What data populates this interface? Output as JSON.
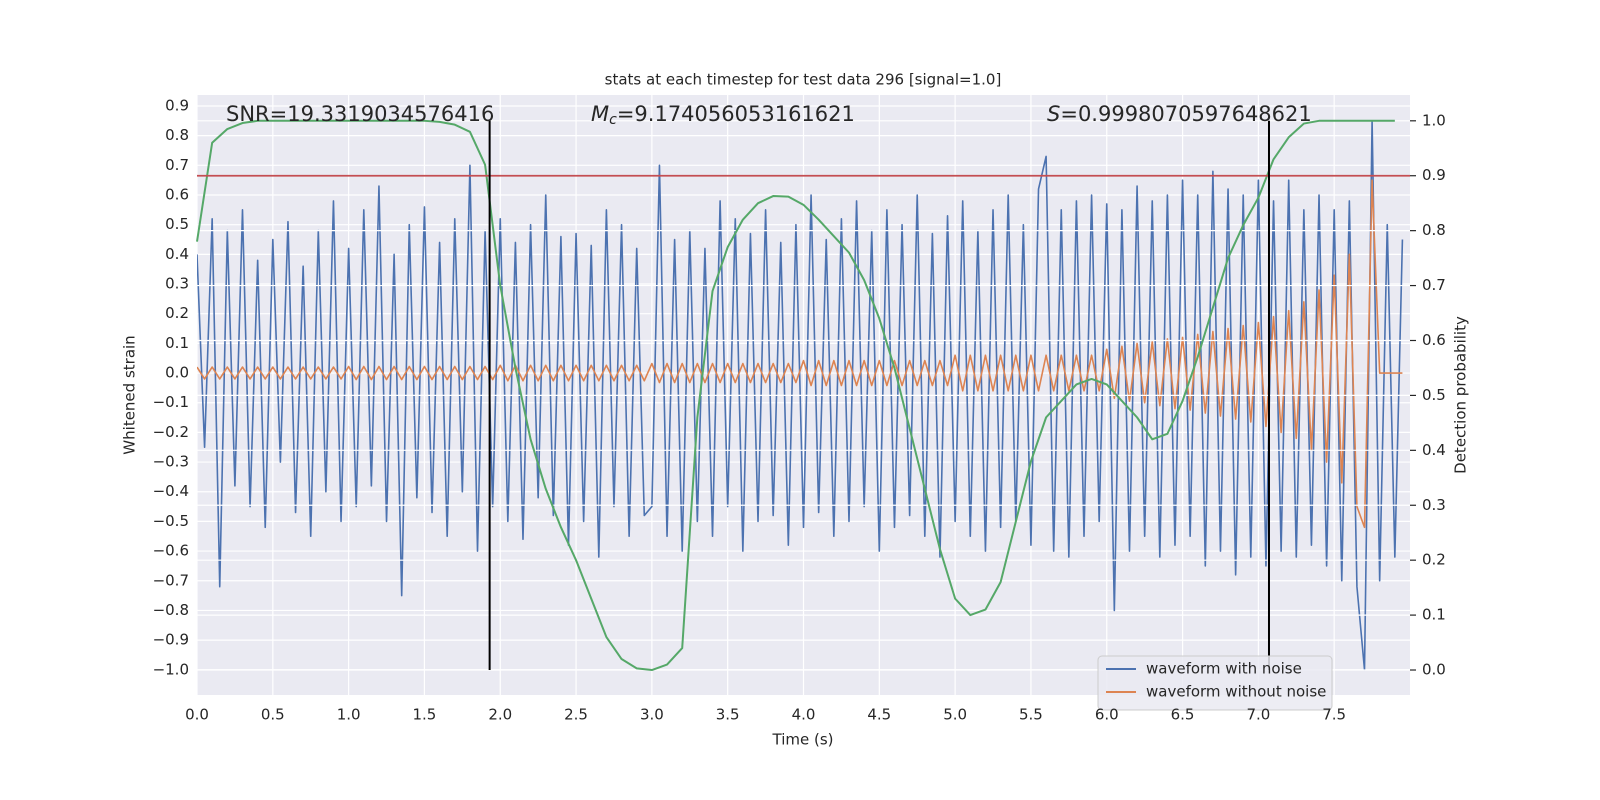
{
  "chart_data": {
    "type": "line",
    "title": "stats at each timestep for test data 296 [signal=1.0]",
    "x_label": "Time (s)",
    "y_label": "Whitened strain",
    "y2_label": "Detection probability",
    "annotations": [
      {
        "text": "SNR=19.3319034576416"
      },
      {
        "symbol": "M",
        "subscript": "c",
        "text": "=9.174056053161621"
      },
      {
        "symbol": "S",
        "text": "=0.9998070597648621"
      }
    ],
    "xlim": [
      0,
      8.0
    ],
    "ylim": [
      -1.085,
      0.937
    ],
    "y2lim": [
      -0.0455,
      1.047
    ],
    "xticks": [
      {
        "value": 0,
        "label": "0.0"
      },
      0.5,
      {
        "value": 1,
        "label": "1.0"
      },
      1.5,
      {
        "value": 2,
        "label": "2.0"
      },
      2.5,
      {
        "value": 3,
        "label": "3.0"
      },
      3.5,
      {
        "value": 4,
        "label": "4.0"
      },
      4.5,
      {
        "value": 5,
        "label": "5.0"
      },
      5.5,
      {
        "value": 6,
        "label": "6.0"
      },
      6.5,
      {
        "value": 7,
        "label": "7.0"
      },
      7.5
    ],
    "yticks": [
      {
        "value": -1.0,
        "label": "−1.0"
      },
      {
        "value": -0.9,
        "label": "−0.9"
      },
      {
        "value": -0.8,
        "label": "−0.8"
      },
      {
        "value": -0.7,
        "label": "−0.7"
      },
      {
        "value": -0.6,
        "label": "−0.6"
      },
      {
        "value": -0.5,
        "label": "−0.5"
      },
      {
        "value": -0.4,
        "label": "−0.4"
      },
      {
        "value": -0.3,
        "label": "−0.3"
      },
      {
        "value": -0.2,
        "label": "−0.2"
      },
      {
        "value": -0.1,
        "label": "−0.1"
      },
      {
        "value": 0,
        "label": "0.0"
      },
      0.1,
      0.2,
      0.3,
      0.4,
      0.5,
      0.6,
      0.7,
      0.8,
      0.9
    ],
    "y2ticks": [
      {
        "value": 0,
        "label": "0.0"
      },
      0.1,
      0.2,
      0.3,
      0.4,
      0.5,
      0.6,
      0.7,
      0.8,
      0.9,
      {
        "value": 1,
        "label": "1.0"
      }
    ],
    "grid": true,
    "legend": "lower right",
    "threshold": 0.9,
    "threshold_color": "#c44e52",
    "markers_x": [
      1.93,
      7.07
    ],
    "x": [
      0,
      0.05,
      0.1,
      0.15,
      0.2,
      0.25,
      0.3,
      0.35,
      0.4,
      0.45,
      0.5,
      0.55,
      0.6,
      0.65,
      0.7,
      0.75,
      0.8,
      0.85,
      0.9,
      0.95,
      1.0,
      1.05,
      1.1,
      1.15,
      1.2,
      1.25,
      1.3,
      1.35,
      1.4,
      1.45,
      1.5,
      1.55,
      1.6,
      1.65,
      1.7,
      1.75,
      1.8,
      1.85,
      1.9,
      1.95,
      2.0,
      2.05,
      2.1,
      2.15,
      2.2,
      2.25,
      2.3,
      2.35,
      2.4,
      2.45,
      2.5,
      2.55,
      2.6,
      2.65,
      2.7,
      2.75,
      2.8,
      2.85,
      2.9,
      2.95,
      3.0,
      3.05,
      3.1,
      3.15,
      3.2,
      3.25,
      3.3,
      3.35,
      3.4,
      3.45,
      3.5,
      3.55,
      3.6,
      3.65,
      3.7,
      3.75,
      3.8,
      3.85,
      3.9,
      3.95,
      4.0,
      4.05,
      4.1,
      4.15,
      4.2,
      4.25,
      4.3,
      4.35,
      4.4,
      4.45,
      4.5,
      4.55,
      4.6,
      4.65,
      4.7,
      4.75,
      4.8,
      4.85,
      4.9,
      4.95,
      5.0,
      5.05,
      5.1,
      5.15,
      5.2,
      5.25,
      5.3,
      5.35,
      5.4,
      5.45,
      5.5,
      5.55,
      5.6,
      5.65,
      5.7,
      5.75,
      5.8,
      5.85,
      5.9,
      5.95,
      6.0,
      6.05,
      6.1,
      6.15,
      6.2,
      6.25,
      6.3,
      6.35,
      6.4,
      6.45,
      6.5,
      6.55,
      6.6,
      6.65,
      6.7,
      6.75,
      6.8,
      6.85,
      6.9,
      6.95,
      7.0,
      7.05,
      7.1,
      7.15,
      7.2,
      7.25,
      7.3,
      7.35,
      7.4,
      7.45,
      7.5,
      7.55,
      7.6,
      7.65,
      7.7,
      7.75,
      7.8,
      7.85,
      7.9,
      7.95
    ],
    "series": [
      {
        "name": "waveform with noise",
        "color": "#4c72b0",
        "values": [
          0.4,
          -0.25,
          0.52,
          -0.72,
          0.48,
          -0.38,
          0.55,
          -0.45,
          0.38,
          -0.52,
          0.45,
          -0.3,
          0.51,
          -0.47,
          0.36,
          -0.55,
          0.48,
          -0.4,
          0.58,
          -0.5,
          0.42,
          -0.45,
          0.55,
          -0.38,
          0.63,
          -0.5,
          0.4,
          -0.75,
          0.5,
          -0.42,
          0.56,
          -0.47,
          0.44,
          -0.55,
          0.52,
          -0.4,
          0.7,
          -0.6,
          0.48,
          -0.45,
          0.52,
          -0.5,
          0.44,
          -0.56,
          0.5,
          -0.42,
          0.6,
          -0.48,
          0.46,
          -0.58,
          0.47,
          -0.5,
          0.43,
          -0.62,
          0.55,
          -0.45,
          0.5,
          -0.55,
          0.42,
          -0.48,
          -0.45,
          0.7,
          -0.55,
          0.45,
          -0.6,
          0.48,
          -0.5,
          0.42,
          -0.55,
          0.58,
          -0.45,
          0.52,
          -0.6,
          0.47,
          -0.5,
          0.55,
          -0.48,
          0.44,
          -0.58,
          0.5,
          -0.52,
          0.6,
          -0.47,
          0.45,
          -0.55,
          0.52,
          -0.5,
          0.58,
          -0.45,
          0.48,
          -0.6,
          0.55,
          -0.52,
          0.5,
          -0.48,
          0.6,
          -0.55,
          0.47,
          -0.62,
          0.53,
          -0.5,
          0.58,
          -0.55,
          0.48,
          -0.6,
          0.55,
          -0.52,
          0.6,
          -0.5,
          0.5,
          -0.58,
          0.62,
          0.73,
          -0.6,
          0.55,
          -0.62,
          0.58,
          -0.55,
          0.6,
          -0.5,
          0.57,
          -0.8,
          0.55,
          -0.6,
          0.63,
          -0.55,
          0.58,
          -0.62,
          0.6,
          -0.58,
          0.65,
          -0.55,
          0.6,
          -0.65,
          0.68,
          -0.6,
          0.62,
          -0.68,
          0.6,
          -0.62,
          0.65,
          -0.65,
          0.58,
          -0.6,
          0.65,
          -0.62,
          0.55,
          -0.58,
          0.6,
          -0.65,
          0.55,
          -0.7,
          0.58,
          -0.72,
          -1.0,
          0.85,
          -0.7,
          0.5,
          -0.62,
          0.45
        ]
      },
      {
        "name": "waveform without noise",
        "color": "#dd8452",
        "values": [
          0.02,
          -0.02,
          0.02,
          -0.02,
          0.02,
          -0.02,
          0.02,
          -0.02,
          0.02,
          -0.02,
          0.02,
          -0.02,
          0.02,
          -0.02,
          0.02,
          -0.02,
          0.02,
          -0.02,
          0.02,
          -0.02,
          0.022,
          -0.022,
          0.022,
          -0.022,
          0.022,
          -0.022,
          0.022,
          -0.022,
          0.022,
          -0.022,
          0.022,
          -0.022,
          0.022,
          -0.022,
          0.022,
          -0.022,
          0.022,
          -0.022,
          0.022,
          -0.022,
          0.026,
          -0.026,
          0.026,
          -0.026,
          0.026,
          -0.026,
          0.026,
          -0.026,
          0.026,
          -0.026,
          0.026,
          -0.026,
          0.026,
          -0.026,
          0.026,
          -0.026,
          0.026,
          -0.026,
          0.026,
          -0.026,
          0.032,
          -0.032,
          0.032,
          -0.032,
          0.032,
          -0.032,
          0.032,
          -0.032,
          0.032,
          -0.032,
          0.032,
          -0.032,
          0.032,
          -0.032,
          0.032,
          -0.032,
          0.032,
          -0.032,
          0.032,
          -0.032,
          0.042,
          -0.042,
          0.042,
          -0.042,
          0.042,
          -0.042,
          0.042,
          -0.042,
          0.042,
          -0.042,
          0.042,
          -0.042,
          0.042,
          -0.042,
          0.042,
          -0.042,
          0.042,
          -0.042,
          0.042,
          -0.042,
          0.06,
          -0.06,
          0.06,
          -0.06,
          0.06,
          -0.06,
          0.06,
          -0.06,
          0.06,
          -0.06,
          0.06,
          -0.06,
          0.06,
          -0.06,
          0.06,
          -0.06,
          0.06,
          -0.06,
          0.06,
          -0.06,
          0.08,
          -0.085,
          0.09,
          -0.095,
          0.1,
          -0.1,
          0.105,
          -0.11,
          0.115,
          -0.12,
          0.12,
          -0.125,
          0.13,
          -0.135,
          0.14,
          -0.145,
          0.15,
          -0.155,
          0.16,
          -0.165,
          0.17,
          -0.18,
          0.19,
          -0.2,
          0.21,
          -0.22,
          0.24,
          -0.26,
          0.28,
          -0.3,
          0.33,
          -0.37,
          0.4,
          -0.45,
          -0.52,
          0.65,
          0,
          0,
          0,
          0
        ]
      },
      {
        "color": "#55a868",
        "axis": "y2",
        "x": [
          0,
          0.1,
          0.2,
          0.3,
          0.4,
          0.5,
          0.6,
          0.7,
          0.8,
          0.9,
          1.0,
          1.1,
          1.2,
          1.3,
          1.4,
          1.5,
          1.6,
          1.7,
          1.8,
          1.9,
          2.0,
          2.1,
          2.2,
          2.3,
          2.4,
          2.5,
          2.6,
          2.7,
          2.8,
          2.9,
          3.0,
          3.1,
          3.2,
          3.3,
          3.4,
          3.5,
          3.6,
          3.7,
          3.8,
          3.9,
          4.0,
          4.1,
          4.2,
          4.3,
          4.4,
          4.5,
          4.6,
          4.7,
          4.8,
          4.9,
          5.0,
          5.1,
          5.2,
          5.3,
          5.4,
          5.5,
          5.6,
          5.7,
          5.8,
          5.9,
          6.0,
          6.1,
          6.2,
          6.3,
          6.4,
          6.5,
          6.6,
          6.7,
          6.8,
          6.9,
          7.0,
          7.1,
          7.2,
          7.3,
          7.4,
          7.5,
          7.6,
          7.7,
          7.8,
          7.9
        ],
        "values": [
          0.78,
          0.96,
          0.985,
          0.996,
          1.0,
          1.0,
          1.0,
          1.0,
          1.0,
          1.0,
          1.0,
          1.0,
          1.0,
          1.0,
          1.0,
          1.0,
          0.998,
          0.993,
          0.98,
          0.92,
          0.7,
          0.55,
          0.42,
          0.33,
          0.26,
          0.2,
          0.13,
          0.06,
          0.02,
          0.003,
          0.0,
          0.01,
          0.04,
          0.46,
          0.69,
          0.77,
          0.82,
          0.85,
          0.863,
          0.862,
          0.847,
          0.82,
          0.79,
          0.76,
          0.71,
          0.64,
          0.55,
          0.44,
          0.33,
          0.22,
          0.13,
          0.1,
          0.11,
          0.16,
          0.27,
          0.38,
          0.46,
          0.49,
          0.52,
          0.53,
          0.52,
          0.49,
          0.46,
          0.42,
          0.43,
          0.49,
          0.57,
          0.66,
          0.75,
          0.81,
          0.86,
          0.93,
          0.97,
          0.995,
          1.0,
          1.0,
          1.0,
          1.0,
          1.0,
          1.0
        ]
      }
    ]
  }
}
